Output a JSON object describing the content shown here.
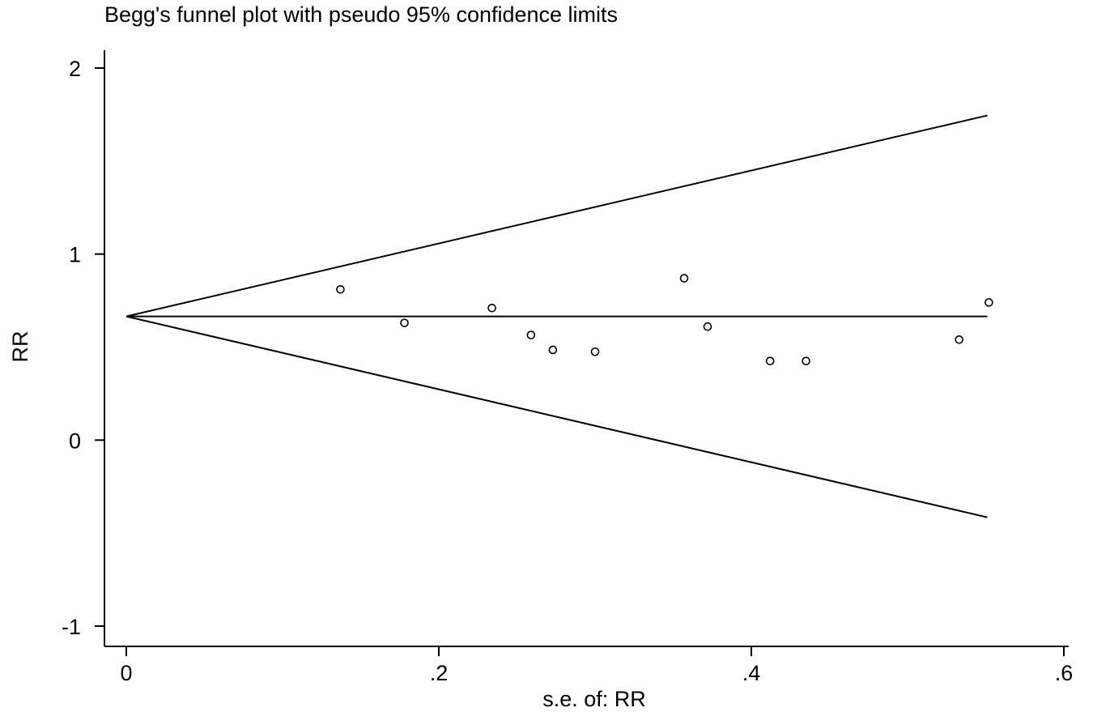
{
  "chart_data": {
    "type": "scatter",
    "title": "Begg's funnel plot with pseudo 95% confidence limits",
    "xlabel": "s.e. of: RR",
    "ylabel": "RR",
    "xlim": [
      0,
      0.6
    ],
    "ylim": [
      -1,
      2
    ],
    "x_ticks": [
      {
        "value": 0,
        "label": "0"
      },
      {
        "value": 0.2,
        "label": ".2"
      },
      {
        "value": 0.4,
        "label": ".4"
      },
      {
        "value": 0.6,
        "label": ".6"
      }
    ],
    "y_ticks": [
      {
        "value": -1,
        "label": "-1"
      },
      {
        "value": 0,
        "label": "0"
      },
      {
        "value": 1,
        "label": "1"
      },
      {
        "value": 2,
        "label": "2"
      }
    ],
    "pooled_estimate": 0.665,
    "se_max": 0.551,
    "upper_limit_end": 1.745,
    "lower_limit_end": -0.415,
    "points": [
      {
        "x": 0.137,
        "y": 0.81
      },
      {
        "x": 0.178,
        "y": 0.63
      },
      {
        "x": 0.234,
        "y": 0.71
      },
      {
        "x": 0.259,
        "y": 0.565
      },
      {
        "x": 0.273,
        "y": 0.485
      },
      {
        "x": 0.3,
        "y": 0.475
      },
      {
        "x": 0.357,
        "y": 0.87
      },
      {
        "x": 0.372,
        "y": 0.61
      },
      {
        "x": 0.412,
        "y": 0.425
      },
      {
        "x": 0.435,
        "y": 0.425
      },
      {
        "x": 0.533,
        "y": 0.54
      },
      {
        "x": 0.552,
        "y": 0.74
      }
    ]
  }
}
